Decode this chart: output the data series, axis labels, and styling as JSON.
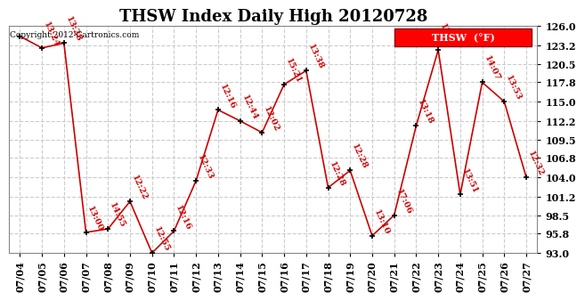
{
  "title": "THSW Index Daily High 20120728",
  "copyright": "Copyright 2012-Cartronics.com",
  "legend_label": "THSW  (°F)",
  "dates": [
    "07/04",
    "07/05",
    "07/06",
    "07/07",
    "07/08",
    "07/09",
    "07/10",
    "07/11",
    "07/12",
    "07/13",
    "07/14",
    "07/15",
    "07/16",
    "07/17",
    "07/18",
    "07/19",
    "07/20",
    "07/21",
    "07/22",
    "07/23",
    "07/24",
    "07/25",
    "07/26",
    "07/27"
  ],
  "values": [
    124.5,
    122.8,
    123.5,
    96.0,
    96.5,
    100.5,
    93.0,
    96.2,
    103.5,
    113.8,
    112.2,
    110.5,
    117.5,
    119.5,
    102.5,
    105.0,
    95.5,
    98.5,
    111.5,
    122.5,
    101.5,
    117.8,
    115.0,
    104.0
  ],
  "labels": [
    "",
    "13:24",
    "13:28",
    "13:00",
    "14:55",
    "12:22",
    "12:55",
    "12:16",
    "12:33",
    "12:16",
    "12:44",
    "12:02",
    "15:21",
    "13:38",
    "12:28",
    "12:28",
    "13:10",
    "17:06",
    "13:18",
    "13:07",
    "13:51",
    "14:07",
    "13:53",
    "12:32"
  ],
  "ylim_min": 93.0,
  "ylim_max": 126.0,
  "yticks": [
    93.0,
    95.8,
    98.5,
    101.2,
    104.0,
    106.8,
    109.5,
    112.2,
    115.0,
    117.8,
    120.5,
    123.2,
    126.0
  ],
  "line_color": "#cc0000",
  "marker_color": "#000000",
  "bg_color": "#ffffff",
  "grid_color": "#cccccc",
  "title_fontsize": 13,
  "label_fontsize": 7,
  "tick_fontsize": 8
}
